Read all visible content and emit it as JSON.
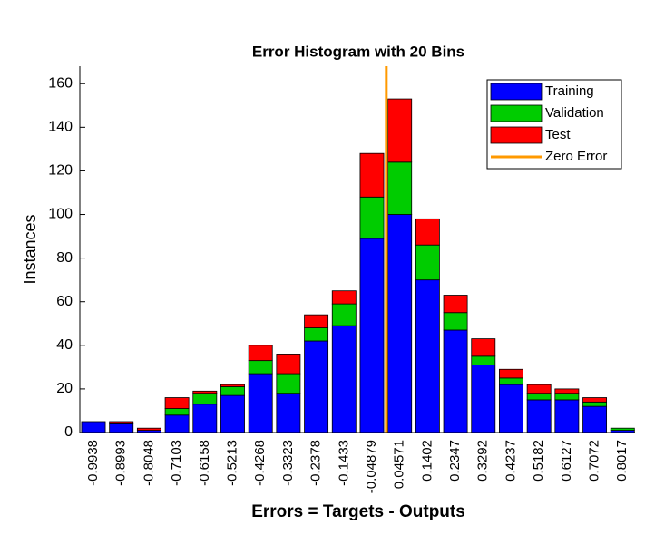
{
  "chart_data": {
    "type": "histogram",
    "title": "Error Histogram with 20 Bins",
    "x_label": "Errors = Targets - Outputs",
    "y_label": "Instances",
    "x": [
      -0.9938,
      -0.8993,
      -0.8048,
      -0.7103,
      -0.6158,
      -0.5213,
      -0.4268,
      -0.3323,
      -0.2378,
      -0.1433,
      -0.04879,
      0.04571,
      0.1402,
      0.2347,
      0.3292,
      0.4237,
      0.5182,
      0.6127,
      0.7072,
      0.8017
    ],
    "xlim": [
      -1.04,
      0.844
    ],
    "ylim": [
      0,
      168
    ],
    "yticks": [
      0,
      20,
      40,
      60,
      80,
      100,
      120,
      140,
      160
    ],
    "series": [
      {
        "name": "Training",
        "color": "#0000ff",
        "values": [
          5,
          4,
          1,
          8,
          13,
          17,
          27,
          18,
          42,
          49,
          89,
          100,
          70,
          47,
          31,
          22,
          15,
          15,
          12,
          1
        ]
      },
      {
        "name": "Validation",
        "color": "#00cc00",
        "values": [
          0,
          0,
          0,
          3,
          5,
          4,
          6,
          9,
          6,
          10,
          19,
          24,
          16,
          8,
          4,
          3,
          3,
          3,
          2,
          1
        ]
      },
      {
        "name": "Test",
        "color": "#ff0000",
        "values": [
          0,
          1,
          1,
          5,
          1,
          1,
          7,
          9,
          6,
          6,
          20,
          29,
          12,
          8,
          8,
          4,
          4,
          2,
          2,
          0
        ]
      }
    ],
    "zero_error": {
      "name": "Zero Error",
      "color": "#ff9900",
      "x": 0
    },
    "legend": "top-right"
  }
}
